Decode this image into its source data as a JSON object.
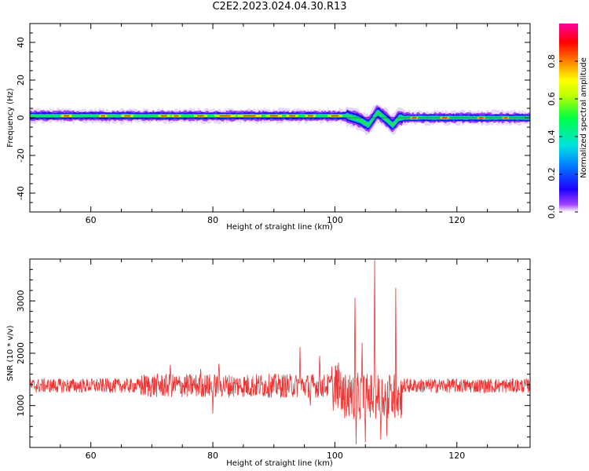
{
  "title": "C2E2.2023.024.04.30.R13",
  "chart_data": [
    {
      "type": "heatmap",
      "xlabel": "Height of straight line (km)",
      "ylabel": "Frequency (Hz)",
      "xlim": [
        50,
        132
      ],
      "ylim": [
        -50,
        50
      ],
      "x_ticks": [
        60,
        80,
        100,
        120
      ],
      "y_ticks": [
        40,
        20,
        0,
        -20,
        -40
      ],
      "band_center_hz": [
        {
          "x": 50,
          "y": 1
        },
        {
          "x": 102,
          "y": 1
        },
        {
          "x": 104,
          "y": -1
        },
        {
          "x": 105.5,
          "y": -4
        },
        {
          "x": 107,
          "y": 3
        },
        {
          "x": 108.5,
          "y": -1
        },
        {
          "x": 109.5,
          "y": -4
        },
        {
          "x": 110.5,
          "y": 0
        },
        {
          "x": 132,
          "y": 0
        }
      ],
      "colorbar": {
        "label": "Normalized spectral amplitude",
        "range": [
          0,
          1
        ],
        "ticks": [
          "0.0",
          "0.2",
          "0.4",
          "0.6",
          "0.8"
        ]
      }
    },
    {
      "type": "line",
      "xlabel": "Height of straight line (km)",
      "ylabel": "SNR (10 * v/v)",
      "xlim": [
        50,
        132
      ],
      "ylim": [
        200,
        3800
      ],
      "x_ticks": [
        60,
        80,
        100,
        120
      ],
      "y_ticks": [
        1000,
        2000,
        3000
      ],
      "series": [
        {
          "color": "#ee3333",
          "baseline": 1380,
          "peaks": [
            {
              "x": 73,
              "y": 1780
            },
            {
              "x": 78,
              "y": 1700
            },
            {
              "x": 81,
              "y": 1800
            },
            {
              "x": 94.3,
              "y": 2120
            },
            {
              "x": 97.5,
              "y": 1950
            },
            {
              "x": 99.5,
              "y": 1750
            },
            {
              "x": 103.3,
              "y": 3060
            },
            {
              "x": 104.5,
              "y": 2200
            },
            {
              "x": 106.5,
              "y": 3780
            },
            {
              "x": 110,
              "y": 3250
            }
          ],
          "troughs": [
            {
              "x": 80,
              "y": 850
            },
            {
              "x": 96,
              "y": 1000
            },
            {
              "x": 99.7,
              "y": 900
            },
            {
              "x": 103.5,
              "y": 260
            },
            {
              "x": 105,
              "y": 300
            },
            {
              "x": 107.5,
              "y": 350
            },
            {
              "x": 108.5,
              "y": 420
            }
          ]
        }
      ]
    }
  ]
}
